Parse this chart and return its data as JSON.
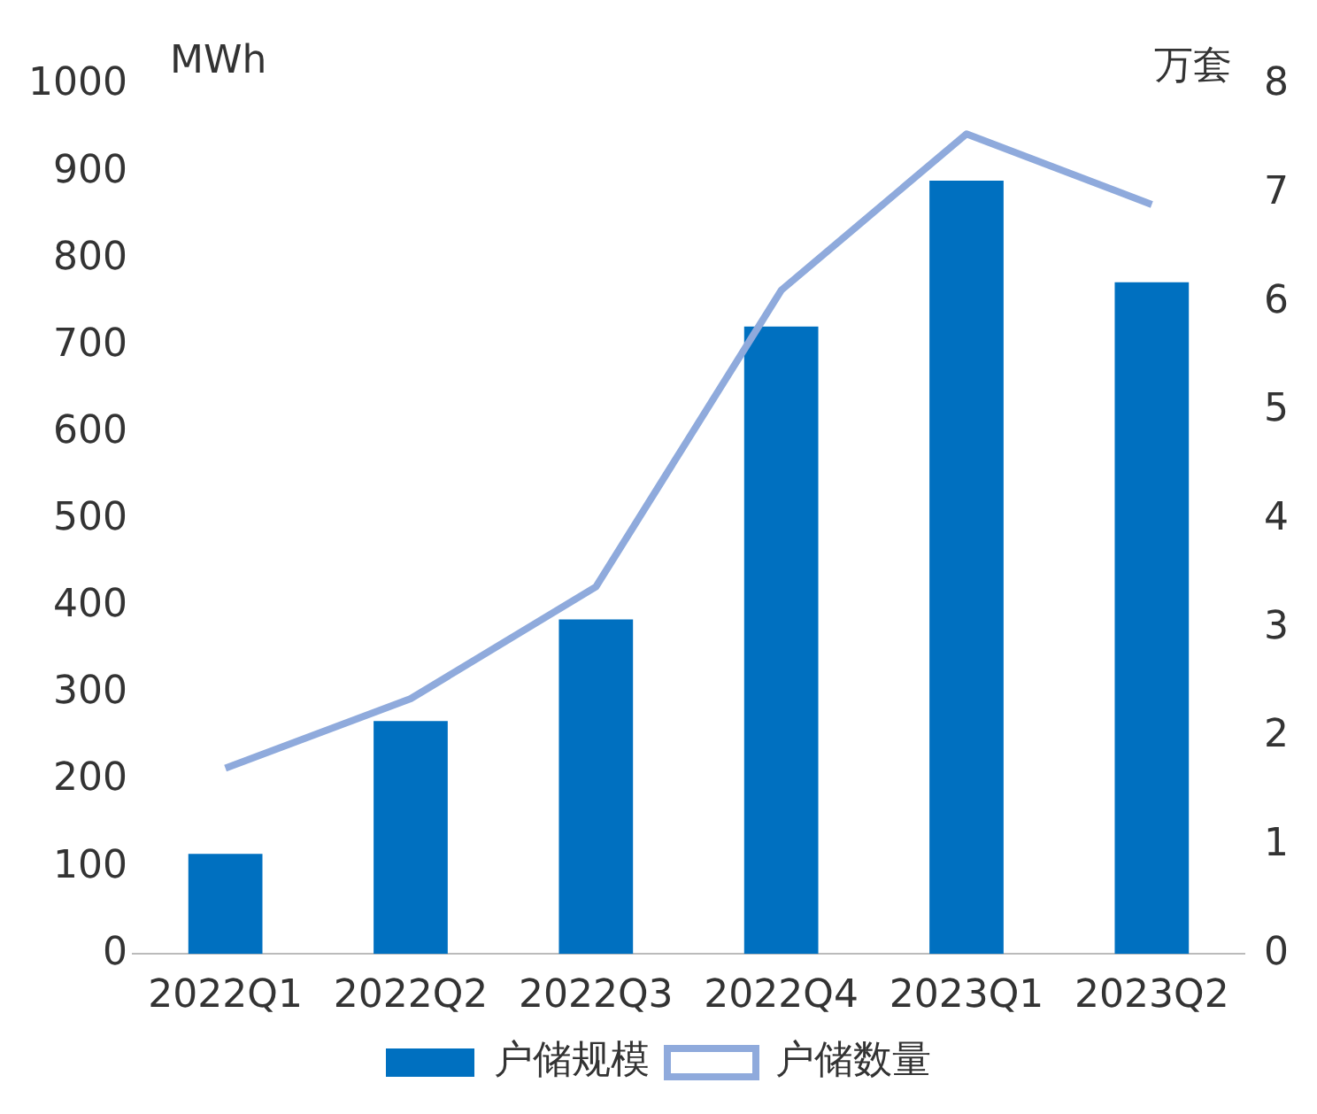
{
  "chart_data": {
    "type": "bar",
    "categories": [
      "2022Q1",
      "2022Q2",
      "2022Q3",
      "2022Q4",
      "2023Q1",
      "2023Q2"
    ],
    "series": [
      {
        "name": "户储规模",
        "color": "#0070c0",
        "values": [
          115,
          268,
          385,
          722,
          890,
          773
        ]
      },
      {
        "name": "户储数量",
        "type": "line",
        "axis": "y2",
        "color": "#8faadc",
        "values": [
          1.71,
          2.35,
          3.38,
          6.11,
          7.55,
          6.9
        ]
      }
    ],
    "ylabel": "MWh",
    "y2label": "万套",
    "ylim": [
      0,
      1000
    ],
    "yticks": [
      0,
      100,
      200,
      300,
      400,
      500,
      600,
      700,
      800,
      900,
      1000
    ],
    "y2lim": [
      0,
      8
    ],
    "y2ticks": [
      0,
      1,
      2,
      3,
      4,
      5,
      6,
      7,
      8
    ],
    "grid": false,
    "legend": "bottom",
    "marker": "none"
  }
}
